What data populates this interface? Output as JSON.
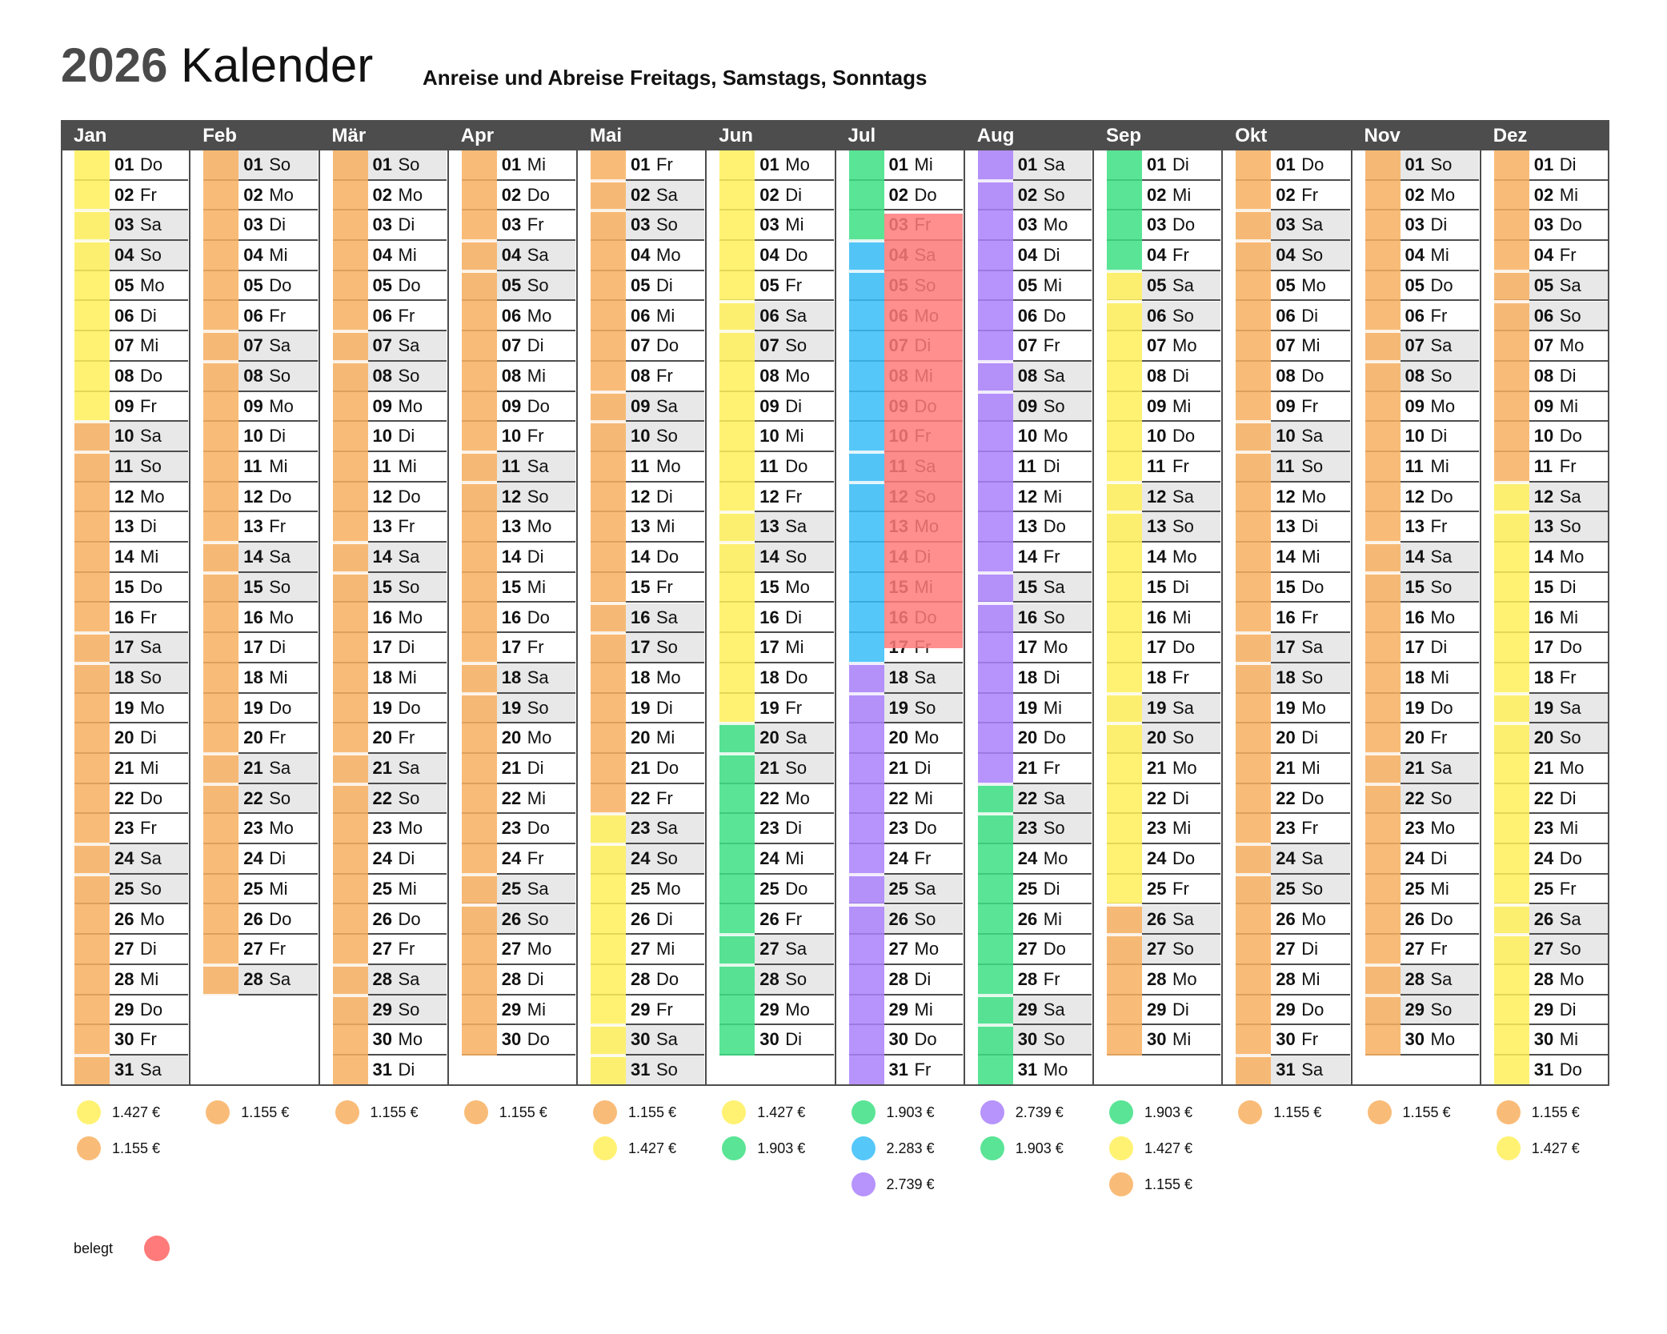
{
  "title": {
    "year": "2026",
    "word": "Kalender"
  },
  "subtitle": "Anreise und Abreise Freitags, Samstags, Sonntags",
  "year": 2026,
  "colors": {
    "yellow": "#fff05a",
    "orange": "#f8b060",
    "green": "#3ddf84",
    "blue": "#38bdf8",
    "purple": "#aa80fb",
    "booked": "#ff7a7a",
    "weekend_row": "#e8e8e8",
    "grid_dark": "#4d4d4d"
  },
  "months": [
    {
      "name": "Jan",
      "days": 31,
      "first_weekday": 3,
      "bands": [
        {
          "color": "yellow",
          "from": 1,
          "to": 9
        },
        {
          "color": "orange",
          "from": 10,
          "to": 31
        }
      ],
      "legend": [
        {
          "color": "yellow",
          "price": "1.427 €"
        },
        {
          "color": "orange",
          "price": "1.155 €"
        }
      ]
    },
    {
      "name": "Feb",
      "days": 28,
      "first_weekday": 6,
      "bands": [
        {
          "color": "orange",
          "from": 1,
          "to": 28
        }
      ],
      "legend": [
        {
          "color": "orange",
          "price": "1.155 €"
        }
      ]
    },
    {
      "name": "Mär",
      "days": 31,
      "first_weekday": 6,
      "bands": [
        {
          "color": "orange",
          "from": 1,
          "to": 31
        }
      ],
      "legend": [
        {
          "color": "orange",
          "price": "1.155 €"
        }
      ]
    },
    {
      "name": "Apr",
      "days": 30,
      "first_weekday": 2,
      "bands": [
        {
          "color": "orange",
          "from": 1,
          "to": 30
        }
      ],
      "legend": [
        {
          "color": "orange",
          "price": "1.155 €"
        }
      ]
    },
    {
      "name": "Mai",
      "days": 31,
      "first_weekday": 4,
      "bands": [
        {
          "color": "orange",
          "from": 1,
          "to": 22
        },
        {
          "color": "yellow",
          "from": 23,
          "to": 31
        }
      ],
      "legend": [
        {
          "color": "orange",
          "price": "1.155 €"
        },
        {
          "color": "yellow",
          "price": "1.427 €"
        }
      ]
    },
    {
      "name": "Jun",
      "days": 30,
      "first_weekday": 0,
      "bands": [
        {
          "color": "yellow",
          "from": 1,
          "to": 19
        },
        {
          "color": "green",
          "from": 20,
          "to": 30
        }
      ],
      "legend": [
        {
          "color": "yellow",
          "price": "1.427 €"
        },
        {
          "color": "green",
          "price": "1.903 €"
        }
      ]
    },
    {
      "name": "Jul",
      "days": 31,
      "first_weekday": 2,
      "bands": [
        {
          "color": "green",
          "from": 1,
          "to": 3
        },
        {
          "color": "blue",
          "from": 4,
          "to": 17
        },
        {
          "color": "purple",
          "from": 18,
          "to": 31
        }
      ],
      "booked": {
        "from": 3,
        "to": 17
      },
      "legend": [
        {
          "color": "green",
          "price": "1.903 €"
        },
        {
          "color": "blue",
          "price": "2.283 €"
        },
        {
          "color": "purple",
          "price": "2.739 €"
        }
      ]
    },
    {
      "name": "Aug",
      "days": 31,
      "first_weekday": 5,
      "bands": [
        {
          "color": "purple",
          "from": 1,
          "to": 21
        },
        {
          "color": "green",
          "from": 22,
          "to": 31
        }
      ],
      "legend": [
        {
          "color": "purple",
          "price": "2.739 €"
        },
        {
          "color": "green",
          "price": "1.903 €"
        }
      ]
    },
    {
      "name": "Sep",
      "days": 30,
      "first_weekday": 1,
      "bands": [
        {
          "color": "green",
          "from": 1,
          "to": 4
        },
        {
          "color": "yellow",
          "from": 5,
          "to": 25
        },
        {
          "color": "orange",
          "from": 26,
          "to": 30
        }
      ],
      "legend": [
        {
          "color": "green",
          "price": "1.903 €"
        },
        {
          "color": "yellow",
          "price": "1.427 €"
        },
        {
          "color": "orange",
          "price": "1.155 €"
        }
      ]
    },
    {
      "name": "Okt",
      "days": 31,
      "first_weekday": 3,
      "bands": [
        {
          "color": "orange",
          "from": 1,
          "to": 31
        }
      ],
      "legend": [
        {
          "color": "orange",
          "price": "1.155 €"
        }
      ]
    },
    {
      "name": "Nov",
      "days": 30,
      "first_weekday": 6,
      "bands": [
        {
          "color": "orange",
          "from": 1,
          "to": 30
        }
      ],
      "legend": [
        {
          "color": "orange",
          "price": "1.155 €"
        }
      ]
    },
    {
      "name": "Dez",
      "days": 31,
      "first_weekday": 1,
      "bands": [
        {
          "color": "orange",
          "from": 1,
          "to": 11
        },
        {
          "color": "yellow",
          "from": 12,
          "to": 31
        }
      ],
      "legend": [
        {
          "color": "orange",
          "price": "1.155 €"
        },
        {
          "color": "yellow",
          "price": "1.427 €"
        }
      ]
    }
  ],
  "weekday_names": [
    "Mo",
    "Di",
    "Mi",
    "Do",
    "Fr",
    "Sa",
    "So"
  ],
  "weekend_weekdays": [
    5,
    6
  ],
  "seam_weekdays": [
    4,
    5
  ],
  "booked_legend": {
    "label": "belegt",
    "color": "booked"
  }
}
